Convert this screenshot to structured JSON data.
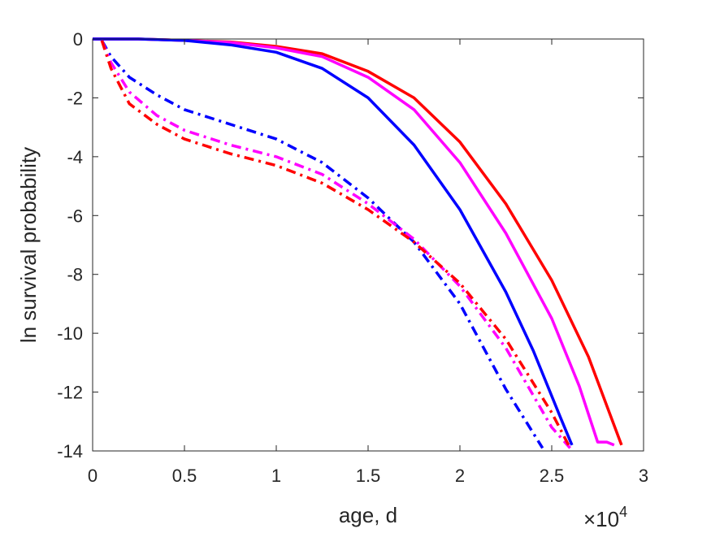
{
  "chart_data": {
    "type": "line",
    "title": "",
    "xlabel": "age, d",
    "ylabel": "ln survival probability",
    "x_multiplier": {
      "base": "×10",
      "exponent": "4"
    },
    "xlim": [
      0,
      3
    ],
    "ylim": [
      -14,
      0
    ],
    "xticks": [
      0,
      0.5,
      1,
      1.5,
      2,
      2.5,
      3
    ],
    "xtick_labels": [
      "0",
      "0.5",
      "1",
      "1.5",
      "2",
      "2.5",
      "3"
    ],
    "yticks": [
      0,
      -2,
      -4,
      -6,
      -8,
      -10,
      -12,
      -14
    ],
    "ytick_labels": [
      "0",
      "-2",
      "-4",
      "-6",
      "-8",
      "-10",
      "-12",
      "-14"
    ],
    "grid": false,
    "legend": "none",
    "series": [
      {
        "color": "#ff0000",
        "style": "solid",
        "x": [
          0,
          0.25,
          0.5,
          0.75,
          1.0,
          1.25,
          1.5,
          1.75,
          2.0,
          2.25,
          2.5,
          2.7,
          2.82,
          2.88
        ],
        "y": [
          0,
          0,
          -0.05,
          -0.1,
          -0.25,
          -0.5,
          -1.1,
          -2.0,
          -3.5,
          -5.6,
          -8.2,
          -10.8,
          -12.8,
          -13.8
        ]
      },
      {
        "color": "#ff00ff",
        "style": "solid",
        "x": [
          0,
          0.25,
          0.5,
          0.75,
          1.0,
          1.25,
          1.5,
          1.75,
          2.0,
          2.25,
          2.5,
          2.65,
          2.75,
          2.8,
          2.84
        ],
        "y": [
          0,
          0,
          -0.05,
          -0.12,
          -0.3,
          -0.6,
          -1.3,
          -2.4,
          -4.2,
          -6.6,
          -9.5,
          -11.8,
          -13.7,
          -13.7,
          -13.8
        ]
      },
      {
        "color": "#0000ff",
        "style": "solid",
        "x": [
          0,
          0.25,
          0.5,
          0.75,
          1.0,
          1.25,
          1.5,
          1.75,
          2.0,
          2.25,
          2.4,
          2.55,
          2.61
        ],
        "y": [
          0,
          0,
          -0.05,
          -0.2,
          -0.45,
          -1.0,
          -2.0,
          -3.6,
          -5.8,
          -8.6,
          -10.6,
          -12.9,
          -13.8
        ]
      },
      {
        "color": "#0000ff",
        "style": "dashdot",
        "x": [
          0.05,
          0.1,
          0.2,
          0.35,
          0.5,
          0.75,
          1.0,
          1.25,
          1.5,
          1.75,
          2.0,
          2.25,
          2.45
        ],
        "y": [
          -0.05,
          -0.6,
          -1.3,
          -1.9,
          -2.4,
          -2.9,
          -3.4,
          -4.2,
          -5.4,
          -6.9,
          -9.0,
          -11.9,
          -13.9
        ]
      },
      {
        "color": "#ff00ff",
        "style": "dashdot",
        "x": [
          0.05,
          0.1,
          0.2,
          0.35,
          0.5,
          0.75,
          1.0,
          1.25,
          1.5,
          1.75,
          2.0,
          2.25,
          2.5,
          2.6
        ],
        "y": [
          -0.05,
          -0.8,
          -1.8,
          -2.6,
          -3.1,
          -3.6,
          -4.0,
          -4.6,
          -5.6,
          -6.8,
          -8.4,
          -10.5,
          -13.2,
          -13.9
        ]
      },
      {
        "color": "#ff0000",
        "style": "dashdot",
        "x": [
          0.05,
          0.1,
          0.2,
          0.35,
          0.5,
          0.75,
          1.0,
          1.25,
          1.5,
          1.75,
          2.0,
          2.25,
          2.5,
          2.6
        ],
        "y": [
          -0.05,
          -1.0,
          -2.2,
          -2.9,
          -3.4,
          -3.9,
          -4.3,
          -4.9,
          -5.8,
          -6.9,
          -8.3,
          -10.2,
          -12.7,
          -13.9
        ]
      }
    ]
  }
}
